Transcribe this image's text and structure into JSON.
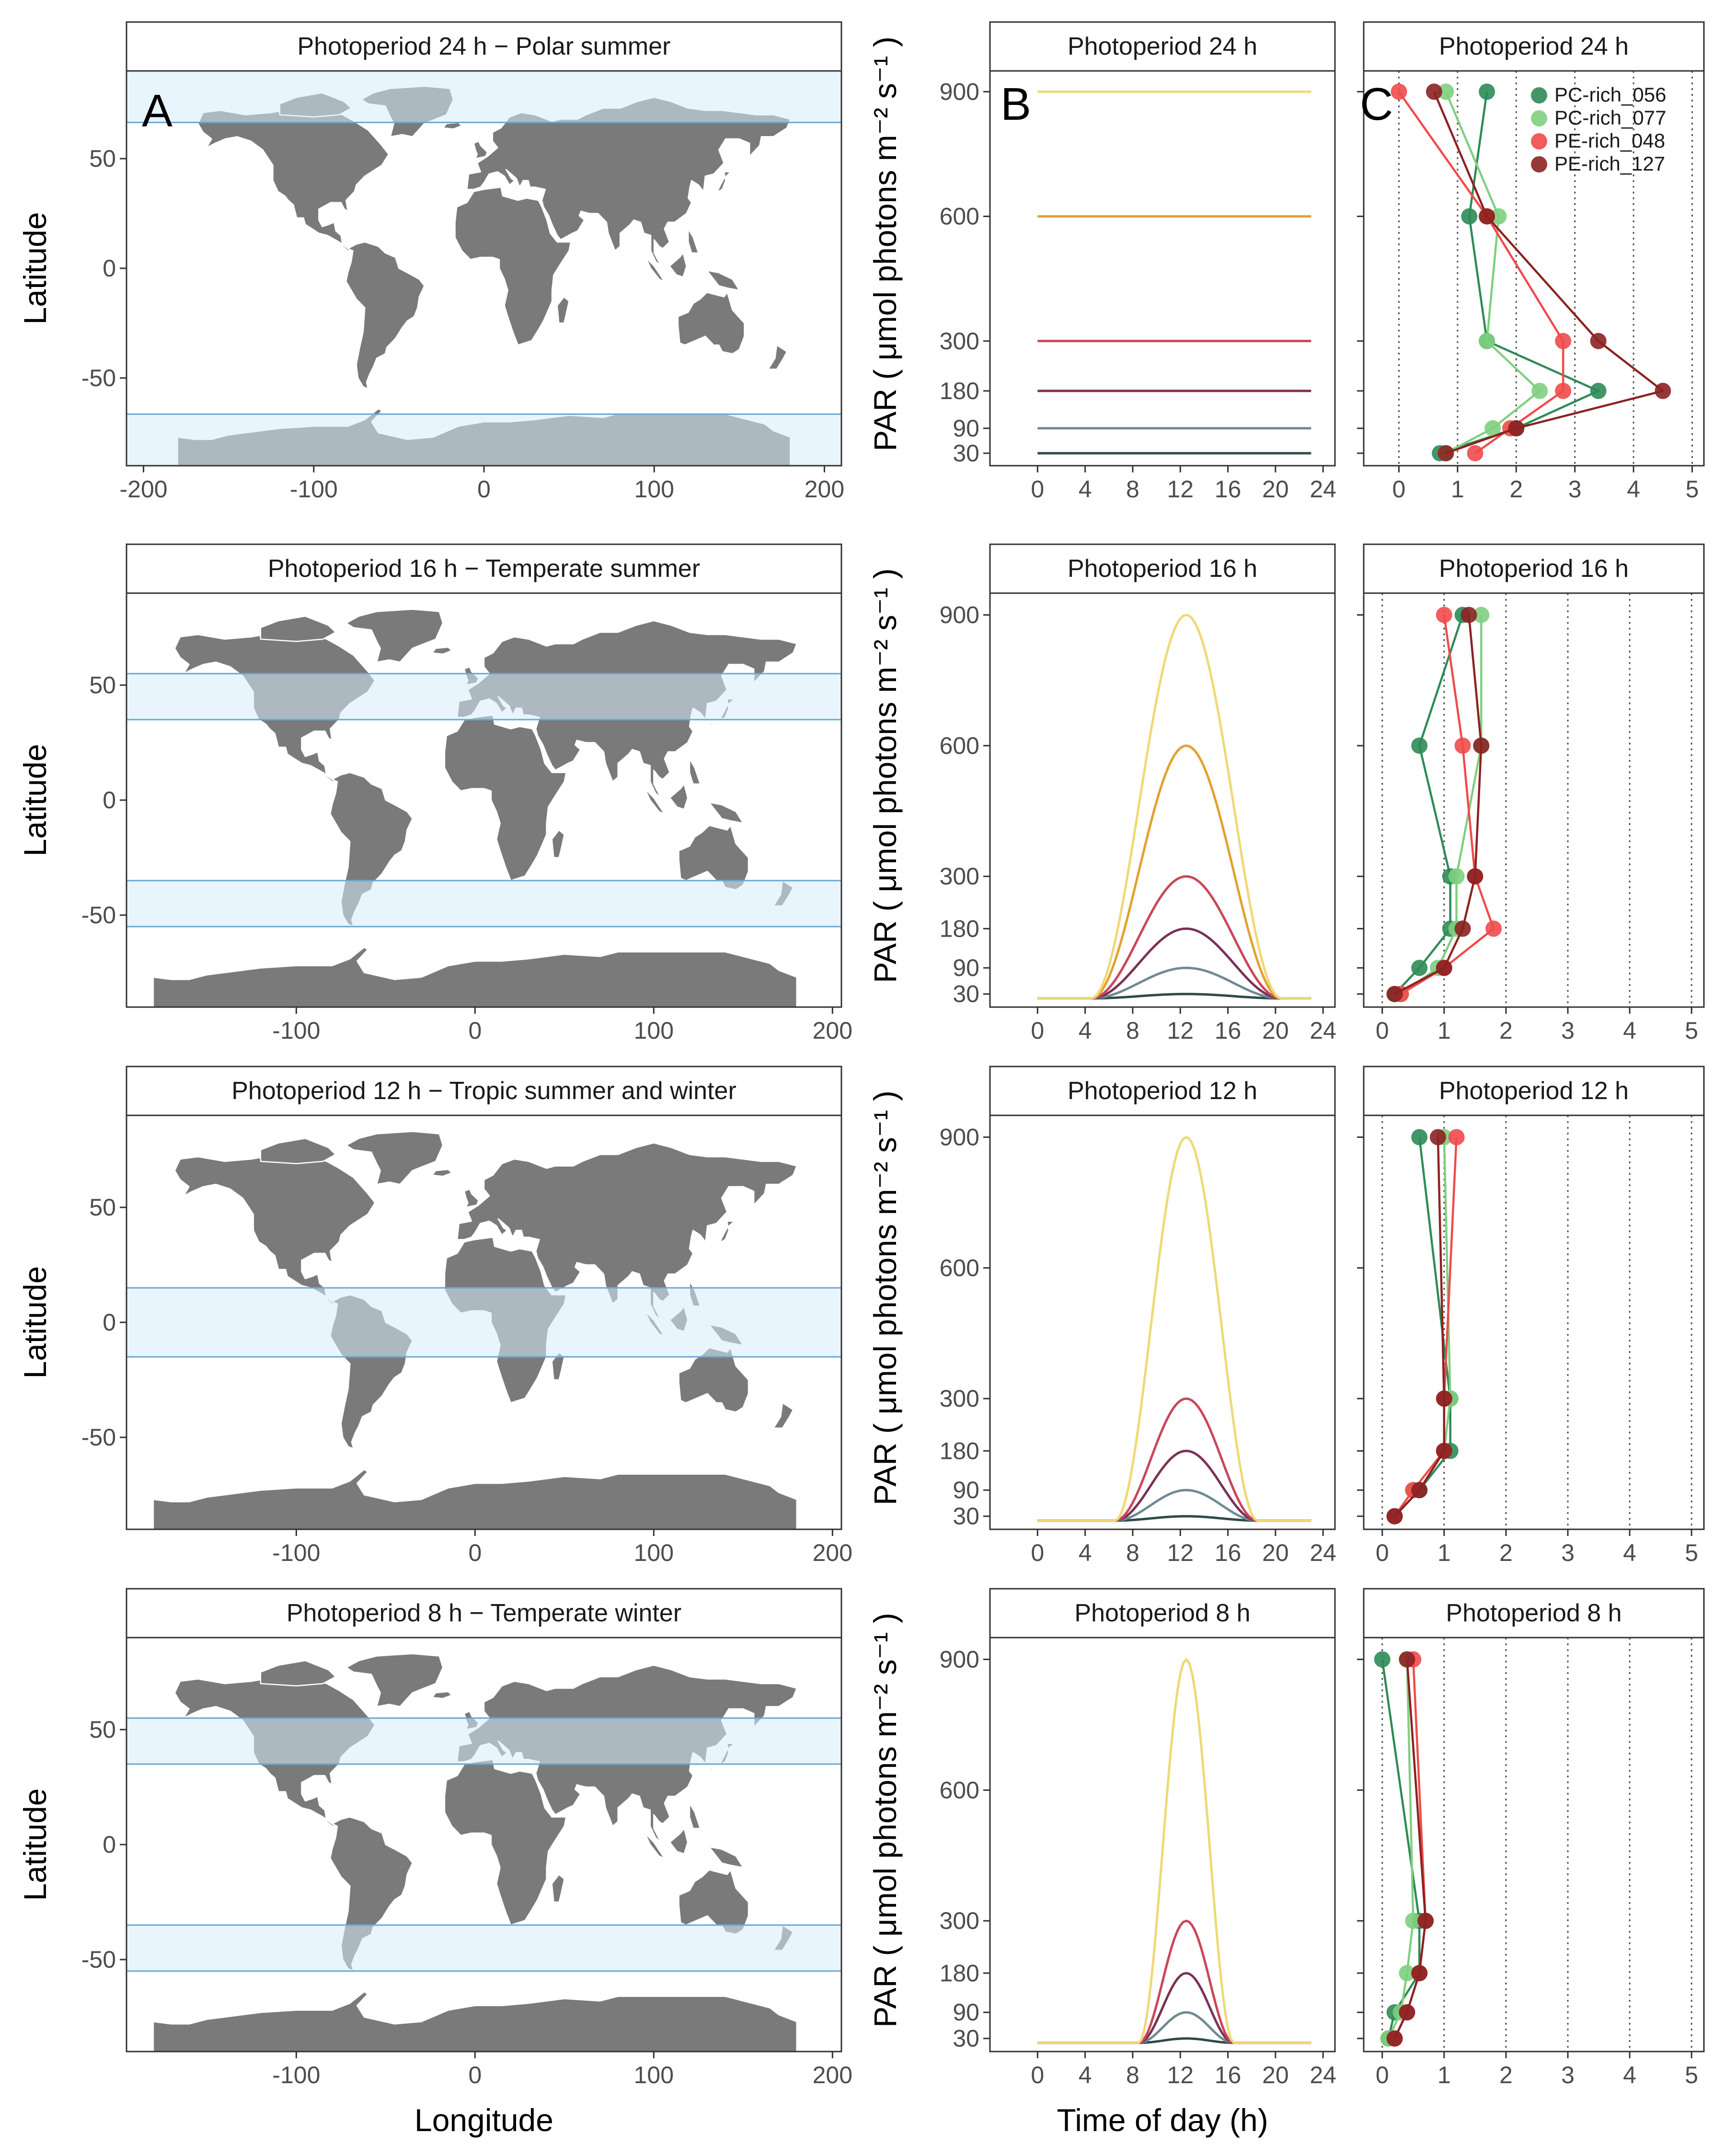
{
  "colors": {
    "land": "#7a7a7a",
    "band_fill": "#d6ecfb",
    "band_stroke": "#6aa8cf",
    "par_30": "#2f4a4a",
    "par_90": "#6f8a92",
    "par_180": "#7b3155",
    "par_300": "#c9475a",
    "par_600": "#e2a22f",
    "par_900": "#eed977"
  },
  "panel_letters": [
    "A",
    "B",
    "C"
  ],
  "axes": {
    "map_xlabel": "Longitude",
    "map_ylabel": "Latitude",
    "par_xlabel": "Time of day (h)",
    "par_ylabel": "PAR ( μmol photons  m⁻²  s⁻¹ )",
    "map_xticks_first": [
      -200,
      -100,
      0,
      100,
      200
    ],
    "map_xticks": [
      -100,
      0,
      100,
      200
    ],
    "map_yticks": [
      50,
      0,
      -50
    ],
    "time_ticks": [
      0,
      4,
      8,
      12,
      16,
      20,
      24
    ],
    "par_ticks": [
      30,
      90,
      180,
      300,
      600,
      900
    ],
    "growth_ticks": [
      0,
      1,
      2,
      3,
      4,
      5
    ]
  },
  "chart_data": [
    {
      "type": "map",
      "title": "Photoperiod  24 h − Polar summer",
      "highlight_lat_bands": [
        [
          66.5,
          90
        ],
        [
          -90,
          -66.5
        ]
      ],
      "xlim": [
        -210,
        210
      ],
      "ylim": [
        -90,
        90
      ]
    },
    {
      "type": "line",
      "title": "Photoperiod  24 h",
      "xlabel": "Time of day (h)",
      "photoperiod_h": 24,
      "peak_par": [
        30,
        90,
        180,
        300,
        600,
        900
      ],
      "xlim": [
        -4,
        25
      ],
      "ylim": [
        0,
        950
      ]
    },
    {
      "type": "line",
      "title": "Photoperiod  24 h",
      "legend_position": "top-right",
      "series": [
        {
          "name": "PC-rich_056",
          "color": "#2e8b57",
          "points": [
            [
              1.5,
              900
            ],
            [
              1.2,
              600
            ],
            [
              1.5,
              300
            ],
            [
              3.4,
              180
            ],
            [
              2.0,
              90
            ],
            [
              0.7,
              30
            ]
          ]
        },
        {
          "name": "PC-rich_077",
          "color": "#7fcf7f",
          "points": [
            [
              0.8,
              900
            ],
            [
              1.7,
              600
            ],
            [
              1.5,
              300
            ],
            [
              2.4,
              180
            ],
            [
              1.6,
              90
            ],
            [
              0.8,
              30
            ]
          ]
        },
        {
          "name": "PE-rich_048",
          "color": "#f04a4a",
          "points": [
            [
              0.0,
              900
            ],
            [
              1.5,
              600
            ],
            [
              2.8,
              300
            ],
            [
              2.8,
              180
            ],
            [
              1.9,
              90
            ],
            [
              1.3,
              30
            ]
          ]
        },
        {
          "name": "PE-rich_127",
          "color": "#8b2222",
          "points": [
            [
              0.6,
              900
            ],
            [
              1.5,
              600
            ],
            [
              3.4,
              300
            ],
            [
              4.5,
              180
            ],
            [
              2.0,
              90
            ],
            [
              0.8,
              30
            ]
          ]
        }
      ],
      "xlim": [
        -0.6,
        5.2
      ],
      "ylim": [
        0,
        950
      ]
    },
    {
      "type": "map",
      "title": "Photoperiod  16 h − Temperate summer",
      "highlight_lat_bands": [
        [
          35,
          55
        ],
        [
          -55,
          -35
        ]
      ],
      "xlim": [
        -195,
        205
      ],
      "ylim": [
        -90,
        90
      ]
    },
    {
      "type": "line",
      "title": "Photoperiod  16 h",
      "xlabel": "Time of day (h)",
      "photoperiod_h": 16,
      "peak_par": [
        30,
        90,
        180,
        300,
        600,
        900
      ],
      "xlim": [
        -4,
        25
      ],
      "ylim": [
        0,
        950
      ]
    },
    {
      "type": "line",
      "title": "Photoperiod  16 h",
      "series": [
        {
          "name": "PC-rich_056",
          "color": "#2e8b57",
          "points": [
            [
              1.3,
              900
            ],
            [
              0.6,
              600
            ],
            [
              1.1,
              300
            ],
            [
              1.1,
              180
            ],
            [
              0.6,
              90
            ],
            [
              0.2,
              30
            ]
          ]
        },
        {
          "name": "PC-rich_077",
          "color": "#7fcf7f",
          "points": [
            [
              1.6,
              900
            ],
            [
              1.6,
              600
            ],
            [
              1.2,
              300
            ],
            [
              1.2,
              180
            ],
            [
              0.9,
              90
            ],
            [
              0.3,
              30
            ]
          ]
        },
        {
          "name": "PE-rich_048",
          "color": "#f04a4a",
          "points": [
            [
              1.0,
              900
            ],
            [
              1.3,
              600
            ],
            [
              1.5,
              300
            ],
            [
              1.8,
              180
            ],
            [
              1.0,
              90
            ],
            [
              0.3,
              30
            ]
          ]
        },
        {
          "name": "PE-rich_127",
          "color": "#8b2222",
          "points": [
            [
              1.4,
              900
            ],
            [
              1.6,
              600
            ],
            [
              1.5,
              300
            ],
            [
              1.3,
              180
            ],
            [
              1.0,
              90
            ],
            [
              0.2,
              30
            ]
          ]
        }
      ],
      "xlim": [
        -0.3,
        5.2
      ],
      "ylim": [
        0,
        950
      ]
    },
    {
      "type": "map",
      "title": "Photoperiod  12 h − Tropic summer and winter",
      "highlight_lat_bands": [
        [
          -15,
          15
        ]
      ],
      "xlim": [
        -195,
        205
      ],
      "ylim": [
        -90,
        90
      ]
    },
    {
      "type": "line",
      "title": "Photoperiod  12 h",
      "xlabel": "Time of day (h)",
      "photoperiod_h": 12,
      "peak_par": [
        30,
        90,
        180,
        300,
        900
      ],
      "xlim": [
        -4,
        25
      ],
      "ylim": [
        0,
        950
      ]
    },
    {
      "type": "line",
      "title": "Photoperiod  12 h",
      "series": [
        {
          "name": "PC-rich_056",
          "color": "#2e8b57",
          "points": [
            [
              0.6,
              900
            ],
            [
              1.1,
              300
            ],
            [
              1.1,
              180
            ],
            [
              0.6,
              90
            ],
            [
              0.2,
              30
            ]
          ]
        },
        {
          "name": "PC-rich_077",
          "color": "#7fcf7f",
          "points": [
            [
              1.0,
              900
            ],
            [
              1.1,
              300
            ],
            [
              1.0,
              180
            ],
            [
              0.5,
              90
            ],
            [
              0.2,
              30
            ]
          ]
        },
        {
          "name": "PE-rich_048",
          "color": "#f04a4a",
          "points": [
            [
              1.2,
              900
            ],
            [
              1.0,
              300
            ],
            [
              1.0,
              180
            ],
            [
              0.5,
              90
            ],
            [
              0.2,
              30
            ]
          ]
        },
        {
          "name": "PE-rich_127",
          "color": "#8b2222",
          "points": [
            [
              0.9,
              900
            ],
            [
              1.0,
              300
            ],
            [
              1.0,
              180
            ],
            [
              0.6,
              90
            ],
            [
              0.2,
              30
            ]
          ]
        }
      ],
      "xlim": [
        -0.3,
        5.2
      ],
      "ylim": [
        0,
        950
      ]
    },
    {
      "type": "map",
      "title": "Photoperiod  8 h − Temperate winter",
      "highlight_lat_bands": [
        [
          35,
          55
        ],
        [
          -55,
          -35
        ]
      ],
      "xlim": [
        -195,
        205
      ],
      "ylim": [
        -90,
        90
      ]
    },
    {
      "type": "line",
      "title": "Photoperiod  8 h",
      "xlabel": "Time of day (h)",
      "photoperiod_h": 8,
      "peak_par": [
        30,
        90,
        180,
        300,
        900
      ],
      "xlim": [
        -4,
        25
      ],
      "ylim": [
        0,
        950
      ]
    },
    {
      "type": "line",
      "title": "Photoperiod  8 h",
      "series": [
        {
          "name": "PC-rich_056",
          "color": "#2e8b57",
          "points": [
            [
              0.0,
              900
            ],
            [
              0.6,
              300
            ],
            [
              0.6,
              180
            ],
            [
              0.2,
              90
            ],
            [
              0.1,
              30
            ]
          ]
        },
        {
          "name": "PC-rich_077",
          "color": "#7fcf7f",
          "points": [
            [
              0.4,
              900
            ],
            [
              0.5,
              300
            ],
            [
              0.4,
              180
            ],
            [
              0.3,
              90
            ],
            [
              0.1,
              30
            ]
          ]
        },
        {
          "name": "PE-rich_048",
          "color": "#f04a4a",
          "points": [
            [
              0.5,
              900
            ],
            [
              0.7,
              300
            ],
            [
              0.6,
              180
            ],
            [
              0.4,
              90
            ],
            [
              0.2,
              30
            ]
          ]
        },
        {
          "name": "PE-rich_127",
          "color": "#8b2222",
          "points": [
            [
              0.4,
              900
            ],
            [
              0.7,
              300
            ],
            [
              0.6,
              180
            ],
            [
              0.4,
              90
            ],
            [
              0.2,
              30
            ]
          ]
        }
      ],
      "xlim": [
        -0.3,
        5.2
      ],
      "ylim": [
        0,
        950
      ]
    }
  ]
}
